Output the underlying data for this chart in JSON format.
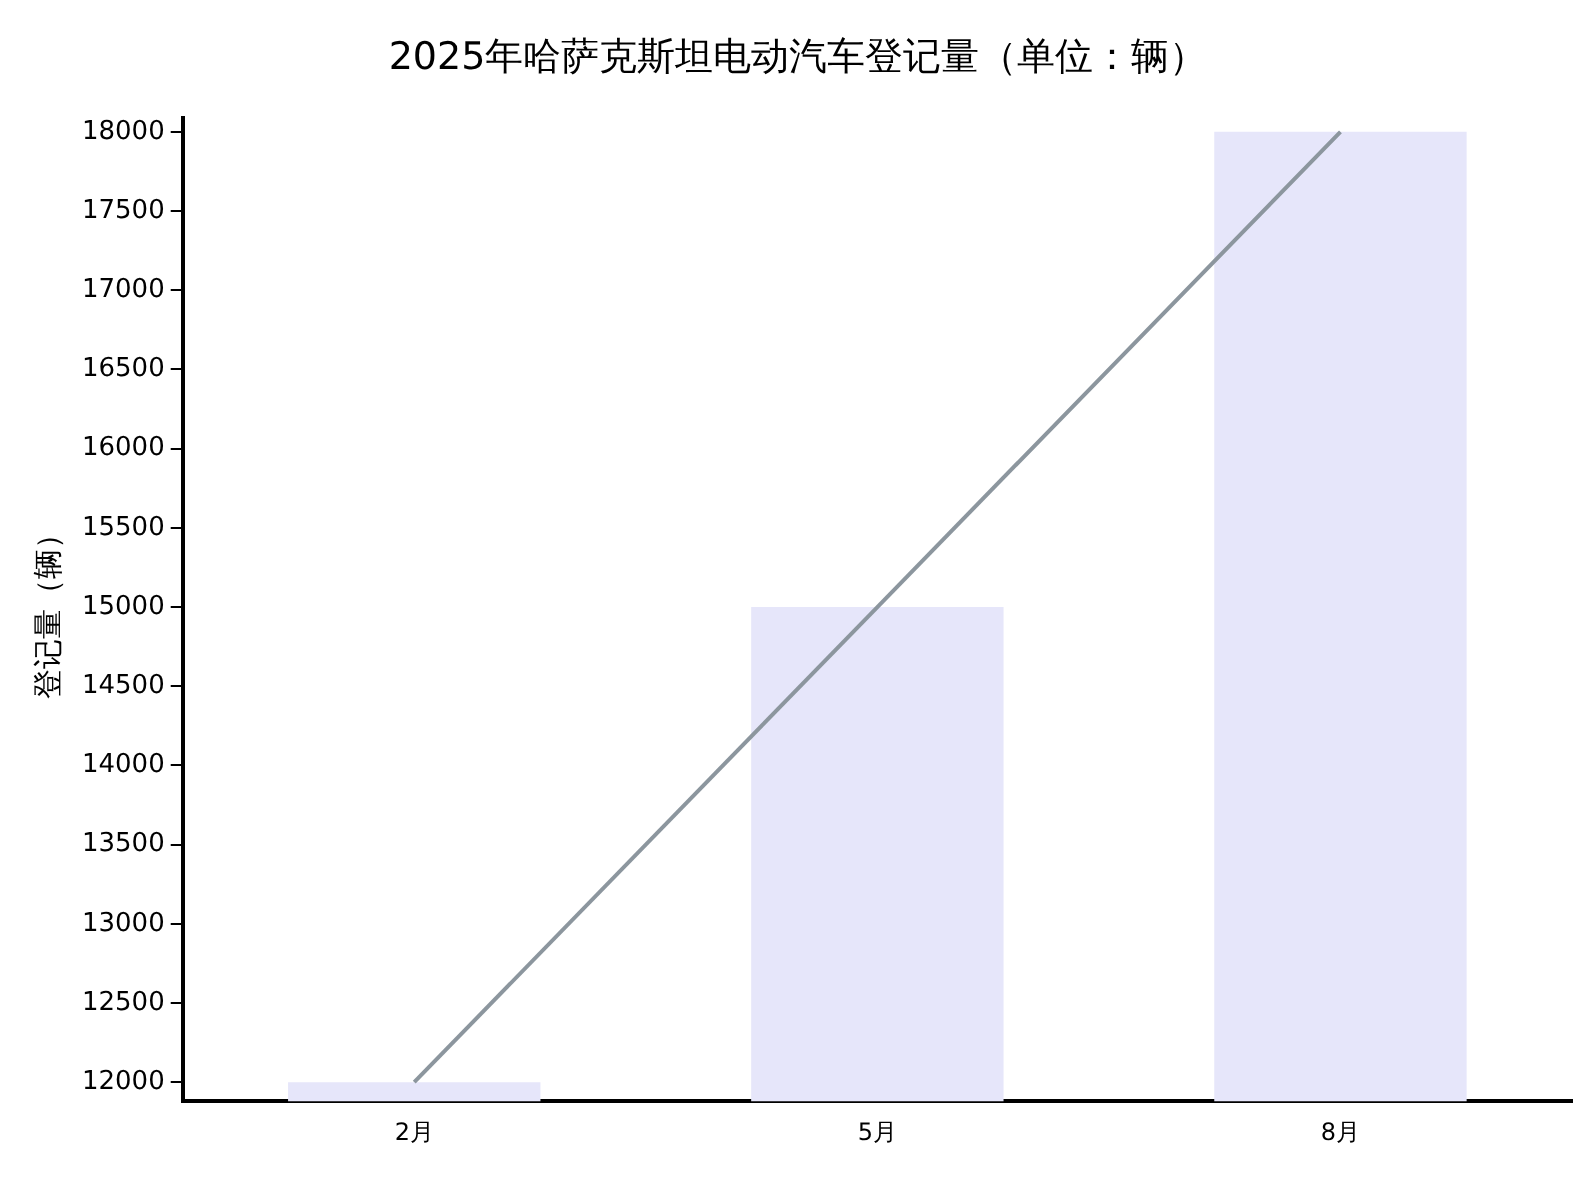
{
  "chart_data": {
    "type": "bar",
    "title": "2025年哈萨克斯坦电动汽车登记量（单位：辆）",
    "ylabel": "登记量（辆）",
    "categories": [
      "2月",
      "5月",
      "8月"
    ],
    "series": [
      {
        "color": "#e6e6fa",
        "values": [
          12000,
          15000,
          18000
        ]
      },
      {
        "type": "line",
        "color": "#8c969e",
        "values": [
          12000,
          15000,
          18000
        ]
      }
    ],
    "ylim": [
      11880,
      18090
    ],
    "yticks": [
      12000,
      12500,
      13000,
      13500,
      14000,
      14500,
      15000,
      15500,
      16000,
      16500,
      17000,
      17500,
      18000
    ],
    "grid": false,
    "legend": false,
    "marker": "none",
    "line_style": "solid"
  }
}
